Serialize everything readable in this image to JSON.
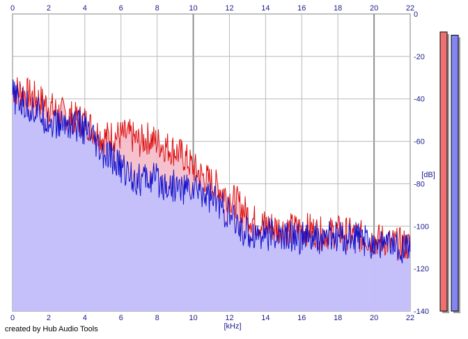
{
  "credit": "created by Hub Audio Tools",
  "chart_data": {
    "type": "area",
    "title": "",
    "xlabel": "[kHz]",
    "ylabel": "[dB]",
    "xlim": [
      0,
      22
    ],
    "ylim": [
      -140,
      0
    ],
    "x_ticks": [
      0,
      2,
      4,
      6,
      8,
      10,
      12,
      14,
      16,
      18,
      20,
      22
    ],
    "y_ticks": [
      0,
      -20,
      -40,
      -60,
      -80,
      -100,
      -120,
      -140
    ],
    "grid": true,
    "series": [
      {
        "color": "#dd1111",
        "fill": "#f3b6c4",
        "x": [
          0,
          0.5,
          1,
          1.5,
          2,
          2.5,
          3,
          3.5,
          4,
          4.5,
          5,
          5.5,
          6,
          6.5,
          7,
          7.5,
          8,
          8.5,
          9,
          9.5,
          10,
          10.5,
          11,
          11.5,
          12,
          12.5,
          13,
          13.5,
          14,
          14.5,
          15,
          15.5,
          16,
          16.5,
          17,
          17.5,
          18,
          18.5,
          19,
          19.5,
          20,
          20.5,
          21,
          21.5,
          22
        ],
        "values": [
          -33,
          -34,
          -36,
          -38,
          -41,
          -44,
          -45,
          -47,
          -48,
          -52,
          -56,
          -55,
          -55,
          -55,
          -58,
          -56,
          -58,
          -60,
          -62,
          -65,
          -70,
          -74,
          -77,
          -80,
          -84,
          -87,
          -92,
          -96,
          -97,
          -98,
          -99,
          -99,
          -99,
          -99,
          -101,
          -101,
          -100,
          -101,
          -102,
          -103,
          -104,
          -104,
          -106,
          -106,
          -107
        ]
      },
      {
        "color": "#1111cc",
        "fill": "#c0c0ff",
        "x": [
          0,
          0.5,
          1,
          1.5,
          2,
          2.5,
          3,
          3.5,
          4,
          4.5,
          5,
          5.5,
          6,
          6.5,
          7,
          7.5,
          8,
          8.5,
          9,
          9.5,
          10,
          10.5,
          11,
          11.5,
          12,
          12.5,
          13,
          13.5,
          14,
          14.5,
          15,
          15.5,
          16,
          16.5,
          17,
          17.5,
          18,
          18.5,
          19,
          19.5,
          20,
          20.5,
          21,
          21.5,
          22
        ],
        "values": [
          -36,
          -40,
          -42,
          -44,
          -48,
          -50,
          -49,
          -50,
          -52,
          -58,
          -65,
          -66,
          -70,
          -73,
          -76,
          -75,
          -76,
          -78,
          -79,
          -80,
          -80,
          -81,
          -84,
          -88,
          -93,
          -98,
          -101,
          -101,
          -101,
          -102,
          -103,
          -102,
          -103,
          -104,
          -104,
          -103,
          -103,
          -104,
          -103,
          -105,
          -105,
          -106,
          -107,
          -107,
          -108
        ]
      }
    ],
    "level_meters": [
      {
        "color": "#ef7070",
        "level": -8.5
      },
      {
        "color": "#8585f2",
        "level": -10
      }
    ]
  }
}
